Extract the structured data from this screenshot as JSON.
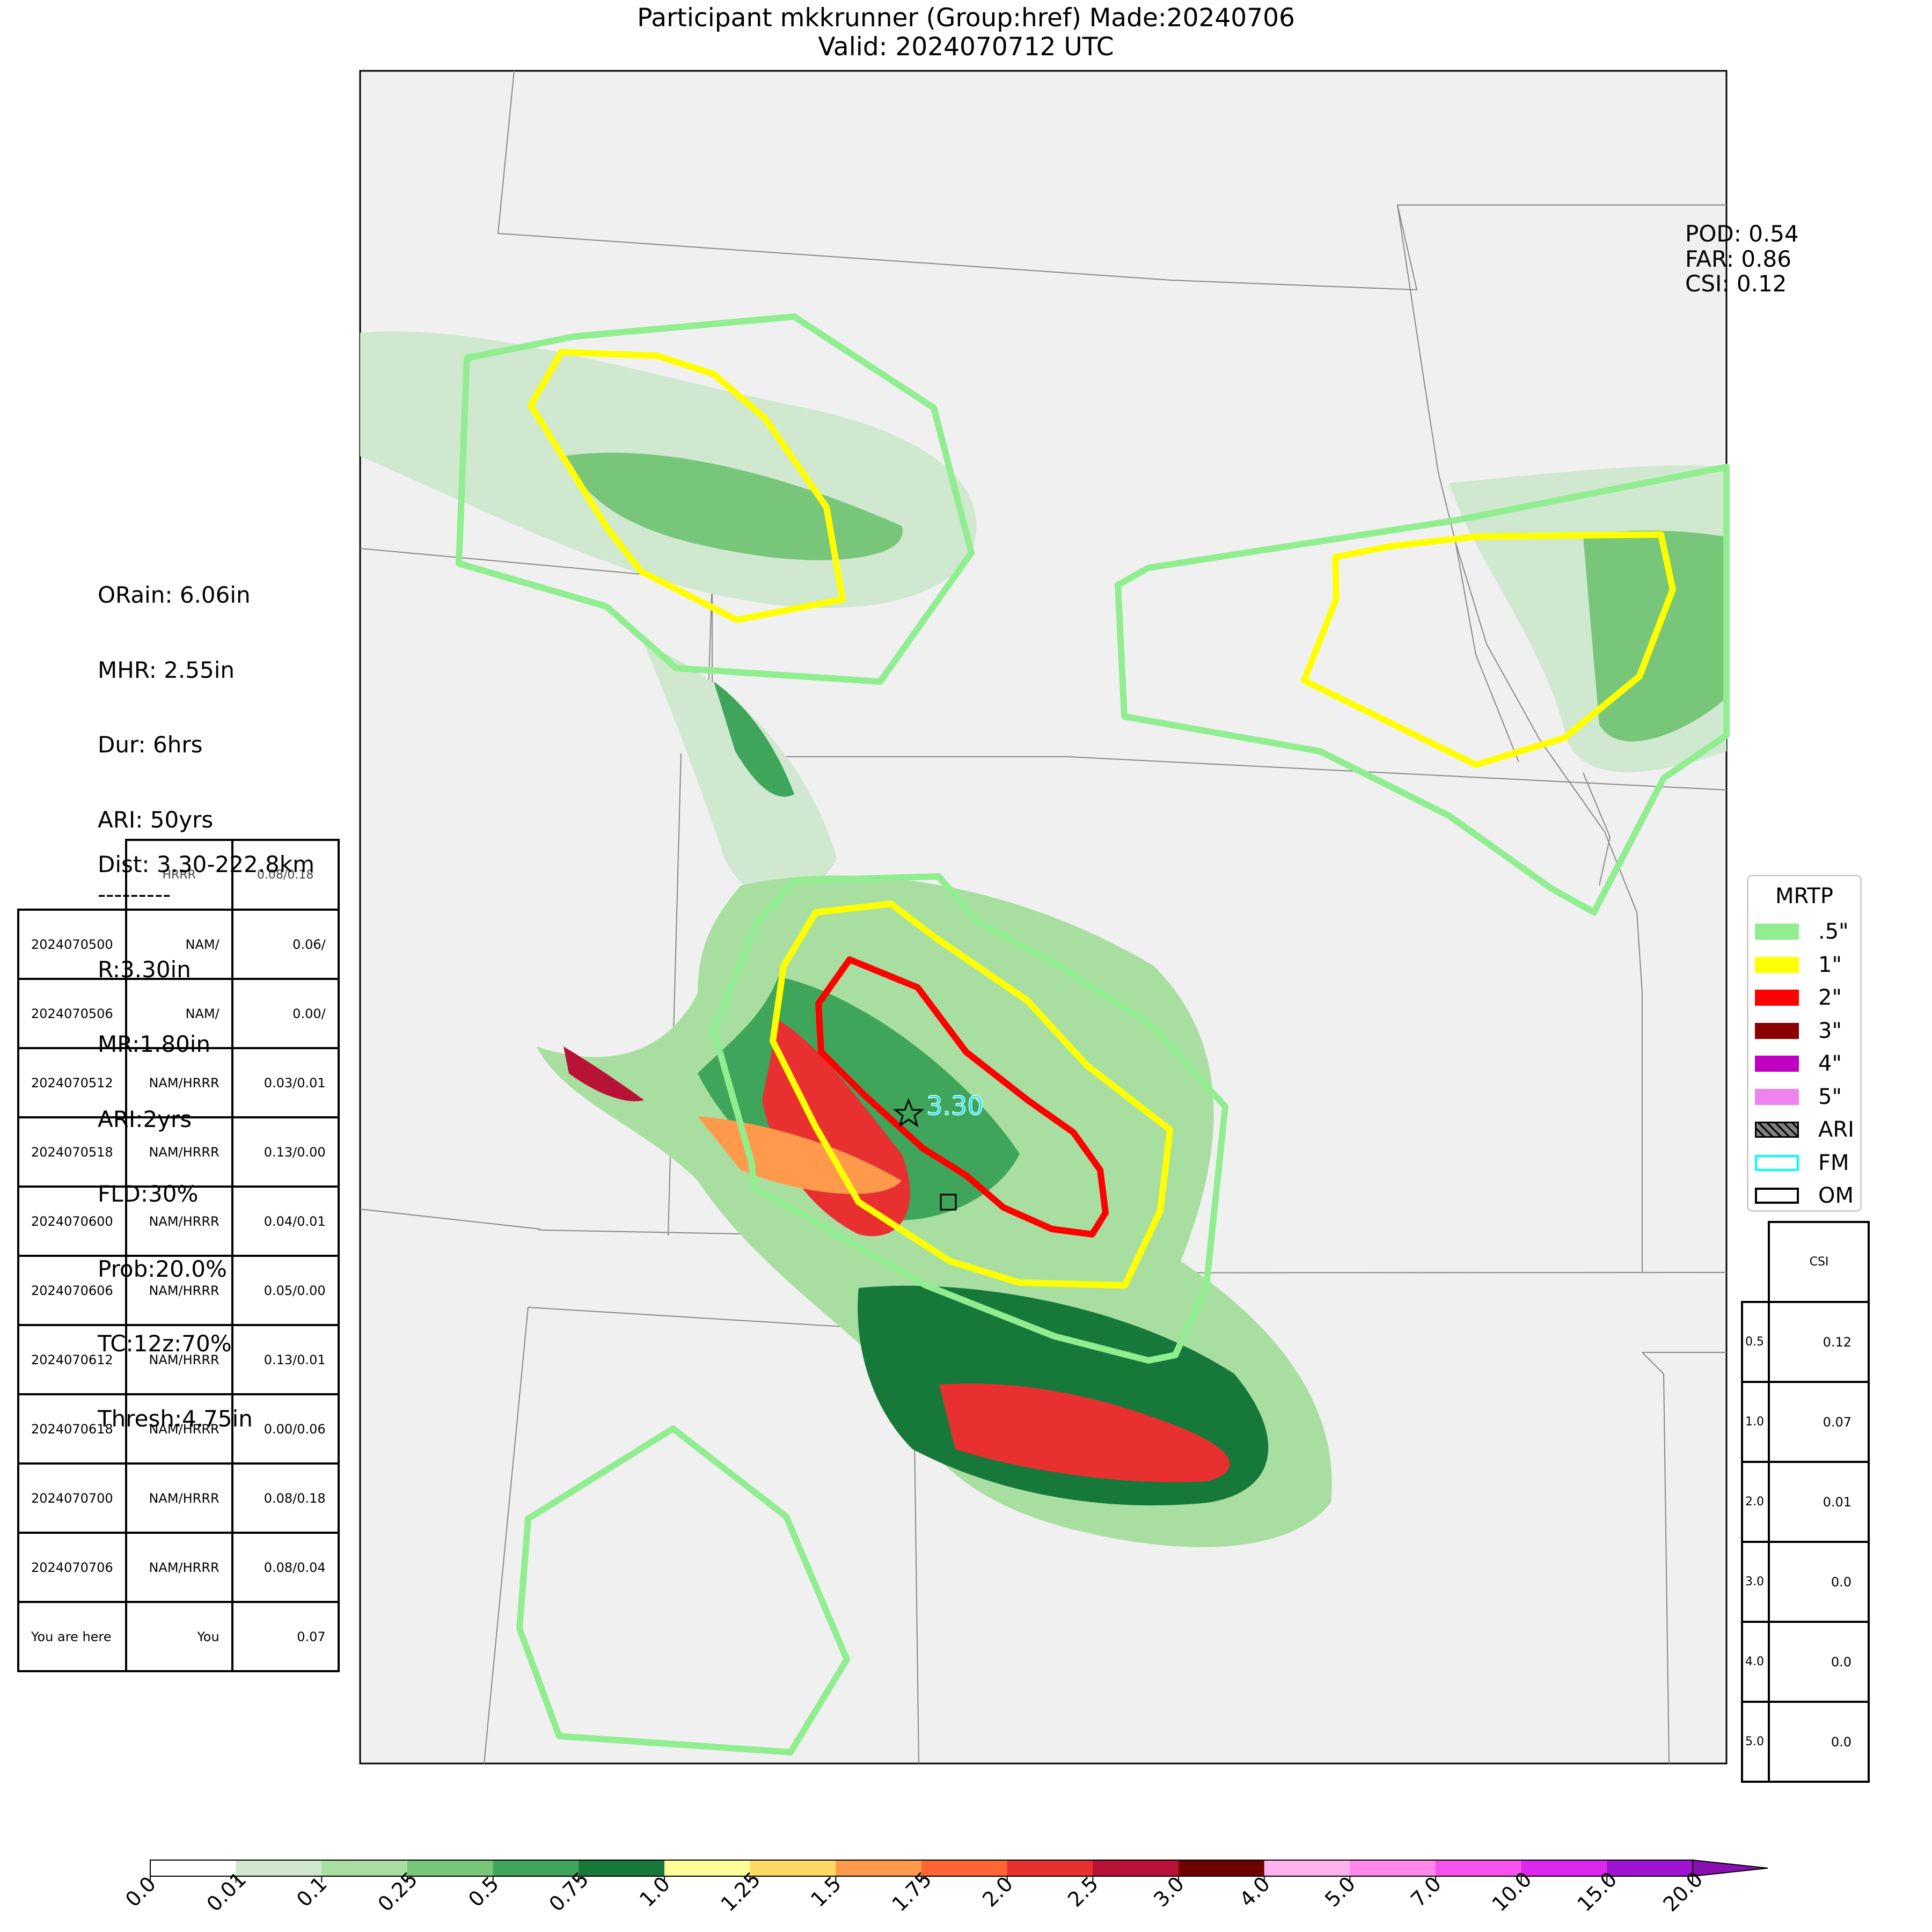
{
  "title": {
    "line1": "Participant mkkrunner (Group:href) Made:20240706",
    "line2": "Valid: 2024070712 UTC"
  },
  "stats_left": {
    "orain": "ORain: 6.06in",
    "mhr": "MHR: 2.55in",
    "dur": "Dur: 6hrs",
    "ari": "ARI: 50yrs",
    "sep": "---------",
    "r": "R:3.30in",
    "mr": "MR:1.80in",
    "ari2": "ARI:2yrs",
    "fld": "FLD:30%",
    "prob": "Prob:20.0%",
    "tc": "TC:12z:70%",
    "thresh": "Thresh:4.75in",
    "dist": "Dist: 3.30-222.8km"
  },
  "scores": {
    "pod": "POD: 0.54",
    "far": "FAR: 0.86",
    "csi": "CSI: 0.12"
  },
  "history_table": {
    "header": [
      "",
      "HRRR",
      "0.08/0.18"
    ],
    "rows": [
      [
        "2024070500",
        "NAM/",
        "0.06/"
      ],
      [
        "2024070506",
        "NAM/",
        "0.00/"
      ],
      [
        "2024070512",
        "NAM/HRRR",
        "0.03/0.01"
      ],
      [
        "2024070518",
        "NAM/HRRR",
        "0.13/0.00"
      ],
      [
        "2024070600",
        "NAM/HRRR",
        "0.04/0.01"
      ],
      [
        "2024070606",
        "NAM/HRRR",
        "0.05/0.00"
      ],
      [
        "2024070612",
        "NAM/HRRR",
        "0.13/0.01"
      ],
      [
        "2024070618",
        "NAM/HRRR",
        "0.00/0.06"
      ],
      [
        "2024070700",
        "NAM/HRRR",
        "0.08/0.18"
      ],
      [
        "2024070706",
        "NAM/HRRR",
        "0.08/0.04"
      ],
      [
        "You are here",
        "You",
        "0.07"
      ]
    ]
  },
  "csi_table": {
    "header": "CSI",
    "rows": [
      {
        "k": "0.5",
        "v": "0.12"
      },
      {
        "k": "1.0",
        "v": "0.07"
      },
      {
        "k": "2.0",
        "v": "0.01"
      },
      {
        "k": "3.0",
        "v": "0.0"
      },
      {
        "k": "4.0",
        "v": "0.0"
      },
      {
        "k": "5.0",
        "v": "0.0"
      }
    ]
  },
  "legend": {
    "title": "MRTP",
    "items": [
      {
        "label": ".5\"",
        "color": "#90ee90",
        "kind": "fill"
      },
      {
        "label": "1\"",
        "color": "#ffff00",
        "kind": "fill"
      },
      {
        "label": "2\"",
        "color": "#ff0000",
        "kind": "fill"
      },
      {
        "label": "3\"",
        "color": "#8b0000",
        "kind": "fill"
      },
      {
        "label": "4\"",
        "color": "#c000c0",
        "kind": "fill"
      },
      {
        "label": "5\"",
        "color": "#ee82ee",
        "kind": "fill"
      },
      {
        "label": "ARI",
        "color": "#808080",
        "kind": "hatch"
      },
      {
        "label": "FM",
        "color": "#00ffff",
        "kind": "outline"
      },
      {
        "label": "OM",
        "color": "#000000",
        "kind": "outline"
      }
    ]
  },
  "map_annotation": "3.30",
  "colorbar": {
    "ticks": [
      "0.0",
      "0.01",
      "0.1",
      "0.25",
      "0.5",
      "0.75",
      "1.0",
      "1.25",
      "1.5",
      "1.75",
      "2.0",
      "2.5",
      "3.0",
      "4.0",
      "5.0",
      "7.0",
      "10.0",
      "15.0",
      "20.0"
    ],
    "colors": [
      "#ffffff",
      "#cfe8cf",
      "#a8dfa0",
      "#78c67a",
      "#3fa55a",
      "#16793a",
      "#ffff99",
      "#ffd966",
      "#ff9a4d",
      "#ff6633",
      "#e83030",
      "#b81237",
      "#6e0000",
      "#ffb3ee",
      "#ff88e8",
      "#f653ee",
      "#de27ec",
      "#a012d4"
    ]
  }
}
